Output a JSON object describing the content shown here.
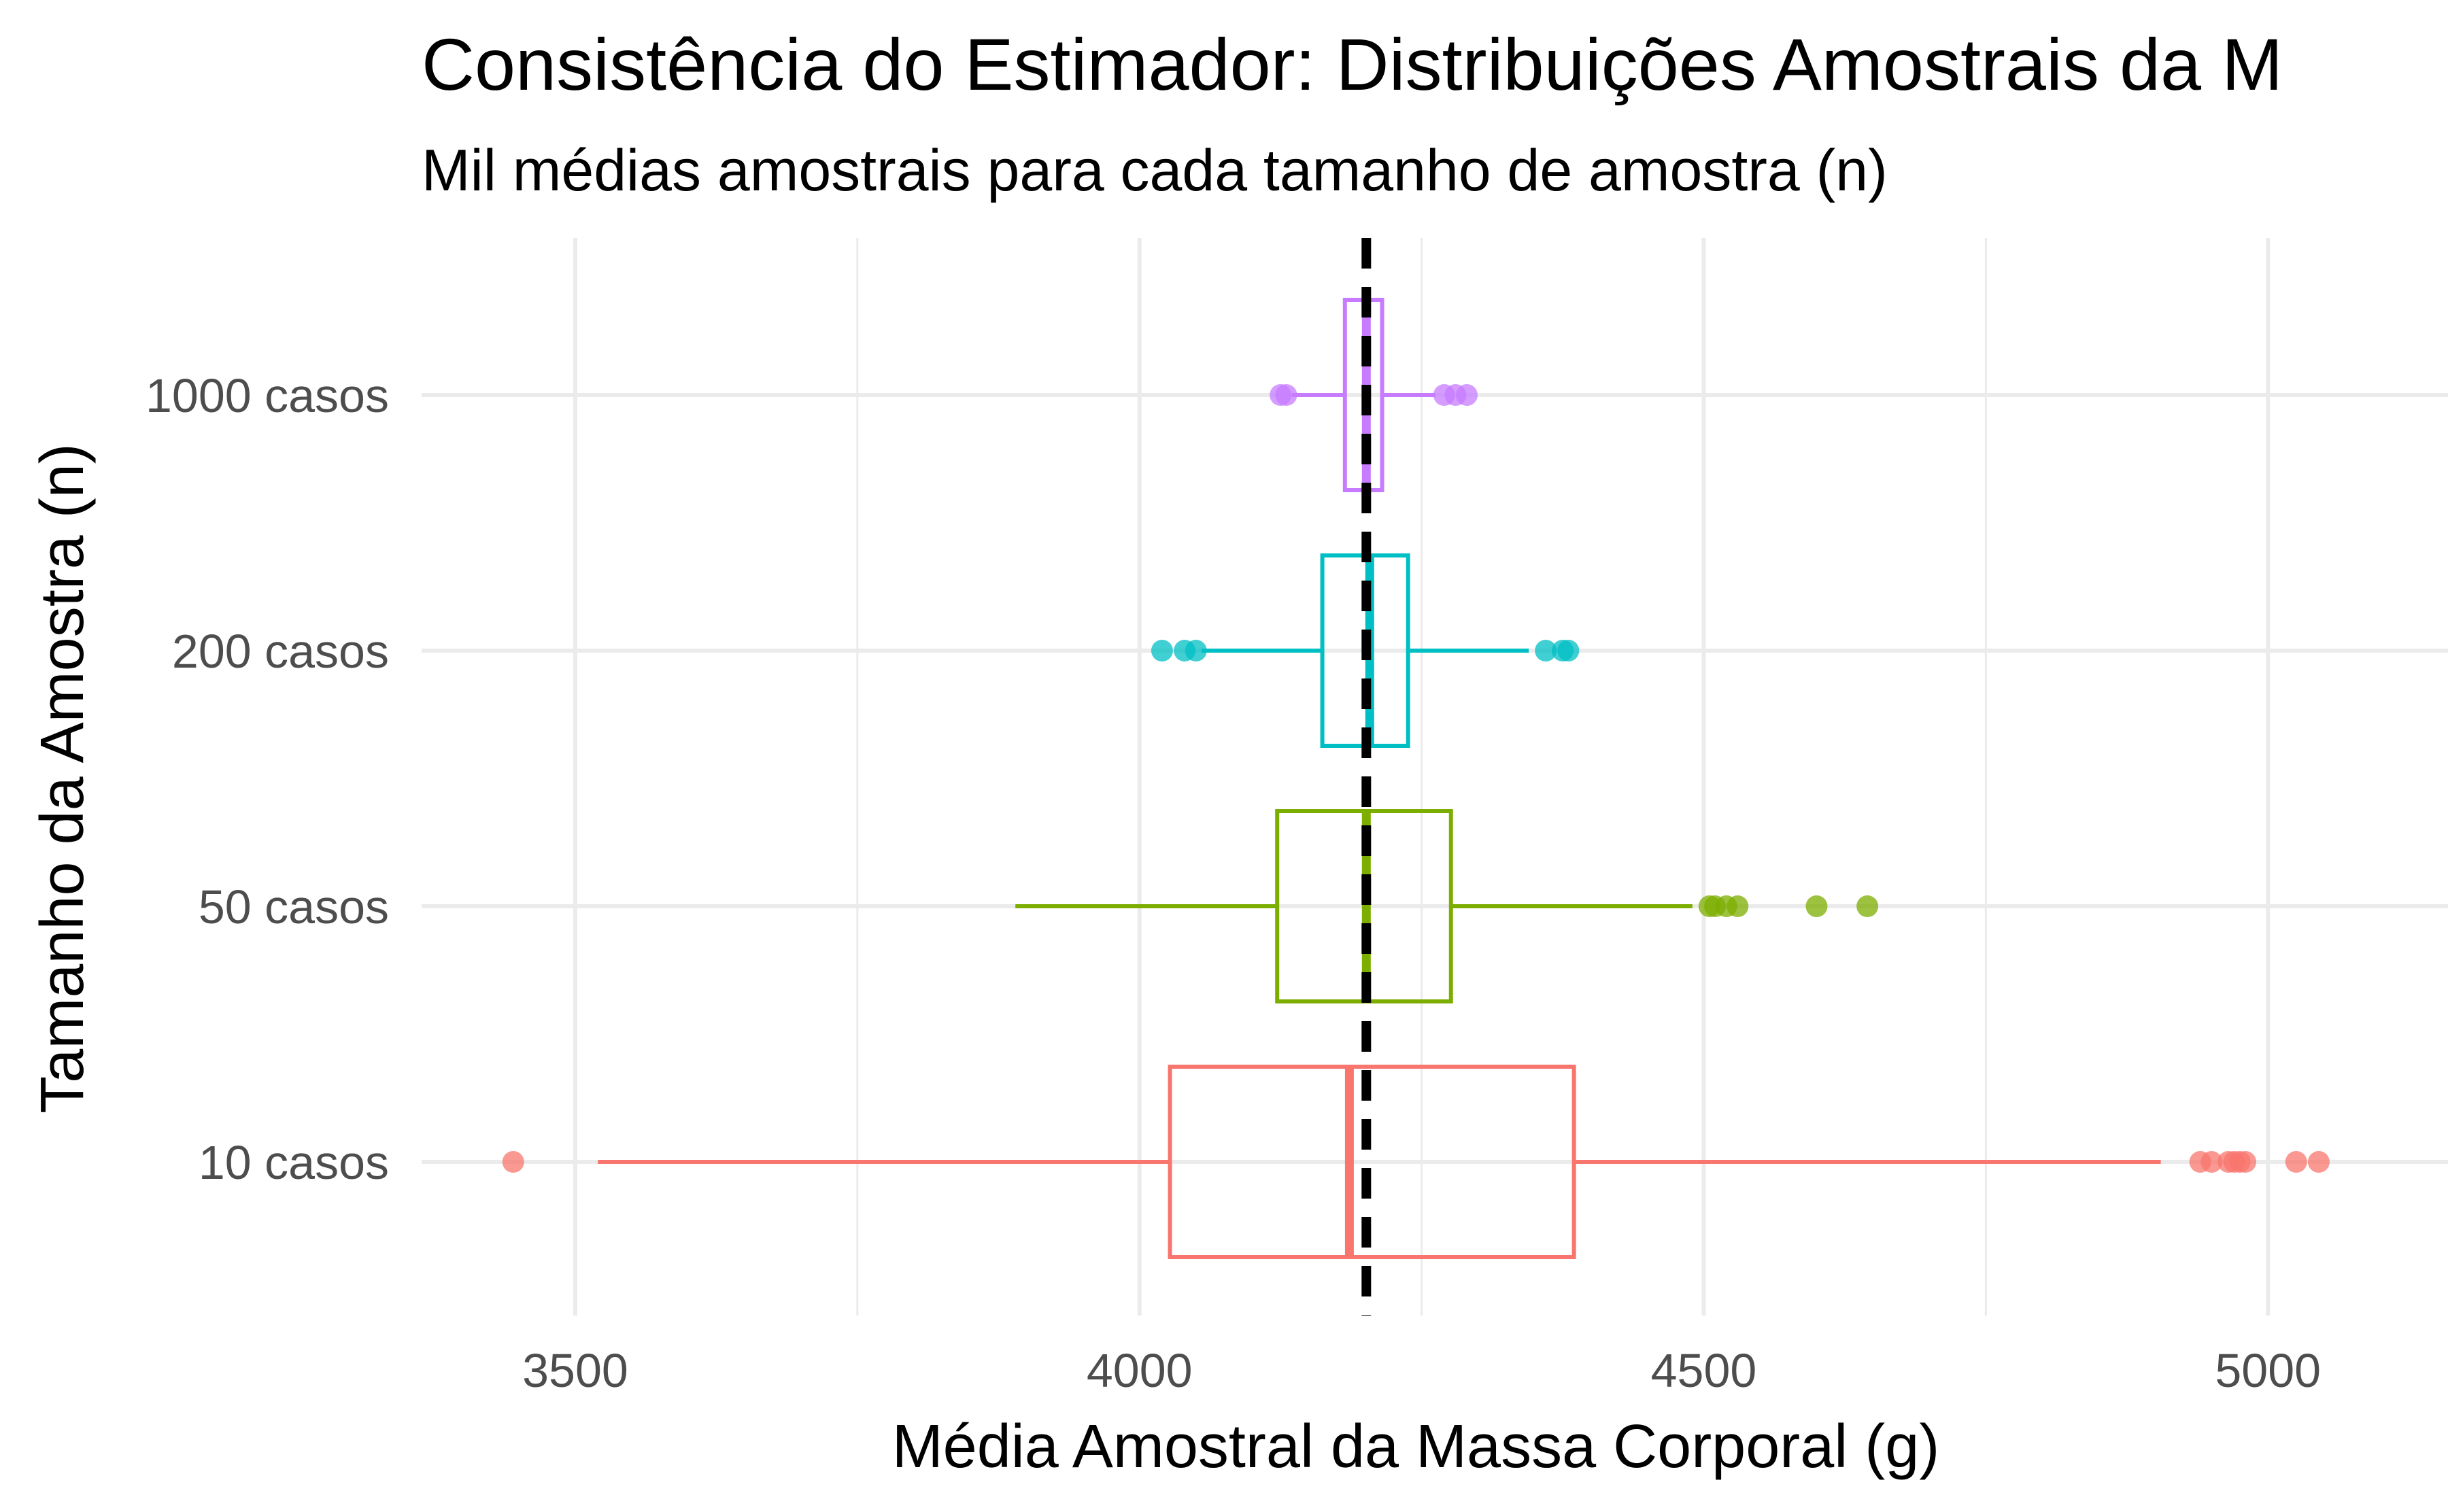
{
  "chart_data": {
    "type": "boxplot",
    "title": "Consistência do Estimador: Distribuições Amostrais da M",
    "subtitle": "Mil médias amostrais para cada tamanho de amostra (n)",
    "xlabel": "Média Amostral da Massa Corporal (g)",
    "ylabel": "Tamanho da Amostra (n)",
    "xlim": [
      3390,
      5250
    ],
    "x_ticks": [
      3500,
      4000,
      4500,
      5000
    ],
    "x_tick_labels": [
      "3500",
      "4000",
      "4500",
      "5000"
    ],
    "grid": true,
    "legend": "none",
    "reference_line": {
      "x": 4201,
      "style": "dashed",
      "color": "#000000"
    },
    "series": [
      {
        "name": "10 casos",
        "color": "#F8766D",
        "q1": 4027,
        "median": 4186,
        "q3": 4385,
        "whisker_low": 3520,
        "whisker_high": 4905,
        "outliers": [
          3445,
          4940,
          4950,
          4965,
          4970,
          4975,
          4980,
          5025,
          5045
        ]
      },
      {
        "name": "50 casos",
        "color": "#7CAE00",
        "q1": 4122,
        "median": 4201,
        "q3": 4276,
        "whisker_low": 3890,
        "whisker_high": 4490,
        "outliers": [
          4505,
          4510,
          4520,
          4530,
          4600,
          4645
        ]
      },
      {
        "name": "200 casos",
        "color": "#00BFC4",
        "q1": 4162,
        "median": 4204,
        "q3": 4238,
        "whisker_low": 4055,
        "whisker_high": 4345,
        "outliers": [
          4020,
          4040,
          4050,
          4360,
          4375,
          4380
        ]
      },
      {
        "name": "1000 casos",
        "color": "#C77CFF",
        "q1": 4182,
        "median": 4201,
        "q3": 4215,
        "whisker_low": 4135,
        "whisker_high": 4262,
        "outliers": [
          4125,
          4130,
          4270,
          4280,
          4290
        ]
      }
    ]
  }
}
